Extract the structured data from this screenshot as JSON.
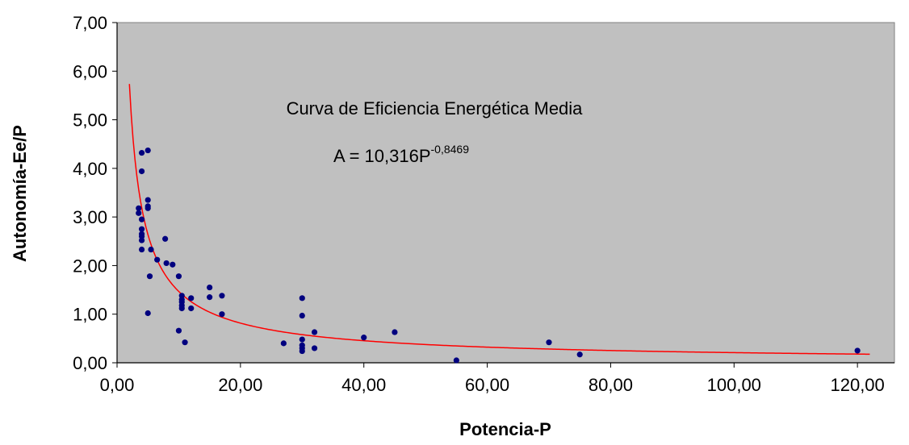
{
  "chart_data": {
    "type": "scatter",
    "title": "",
    "xlabel": "Potencia-P",
    "ylabel": "Autonomía-Ee/P",
    "xlim": [
      0,
      120
    ],
    "ylim": [
      0,
      7
    ],
    "x_ticks": [
      "0,00",
      "20,00",
      "40,00",
      "60,00",
      "80,00",
      "100,00",
      "120,00"
    ],
    "y_ticks": [
      "0,00",
      "1,00",
      "2,00",
      "3,00",
      "4,00",
      "5,00",
      "6,00",
      "7,00"
    ],
    "grid": false,
    "legend": "none",
    "plot_background": "#c0c0c0",
    "annotation_title": "Curva de Eficiencia Energética Media",
    "annotation_equation": {
      "base": "A = 10,316P",
      "exponent": "-0,8469"
    },
    "trendline": {
      "type": "power",
      "coefficient": 10.316,
      "exponent": -0.8469,
      "x_range": [
        2,
        122
      ],
      "color": "#ff0000"
    },
    "series": [
      {
        "color": "#00007f",
        "points": [
          [
            3.5,
            3.18
          ],
          [
            3.5,
            3.08
          ],
          [
            4,
            4.32
          ],
          [
            4,
            3.94
          ],
          [
            4,
            2.95
          ],
          [
            4,
            2.75
          ],
          [
            4,
            2.65
          ],
          [
            4,
            2.6
          ],
          [
            4,
            2.52
          ],
          [
            4,
            2.33
          ],
          [
            5,
            4.37
          ],
          [
            5,
            3.35
          ],
          [
            5,
            3.22
          ],
          [
            5,
            3.18
          ],
          [
            5,
            1.02
          ],
          [
            5.3,
            1.78
          ],
          [
            5.5,
            2.33
          ],
          [
            6.5,
            2.12
          ],
          [
            7.8,
            2.55
          ],
          [
            8,
            2.05
          ],
          [
            9,
            2.02
          ],
          [
            10,
            1.78
          ],
          [
            10,
            0.66
          ],
          [
            10.5,
            1.38
          ],
          [
            10.5,
            1.3
          ],
          [
            10.5,
            1.25
          ],
          [
            10.5,
            1.18
          ],
          [
            10.5,
            1.12
          ],
          [
            11,
            0.42
          ],
          [
            12,
            1.33
          ],
          [
            12,
            1.12
          ],
          [
            15,
            1.55
          ],
          [
            15,
            1.35
          ],
          [
            17,
            1.38
          ],
          [
            17,
            1.0
          ],
          [
            27,
            0.4
          ],
          [
            30,
            1.33
          ],
          [
            30,
            0.97
          ],
          [
            30,
            0.48
          ],
          [
            30,
            0.36
          ],
          [
            30,
            0.3
          ],
          [
            30,
            0.24
          ],
          [
            32,
            0.63
          ],
          [
            32,
            0.3
          ],
          [
            40,
            0.52
          ],
          [
            45,
            0.63
          ],
          [
            55,
            0.05
          ],
          [
            70,
            0.42
          ],
          [
            75,
            0.17
          ],
          [
            120,
            0.25
          ]
        ]
      }
    ]
  }
}
